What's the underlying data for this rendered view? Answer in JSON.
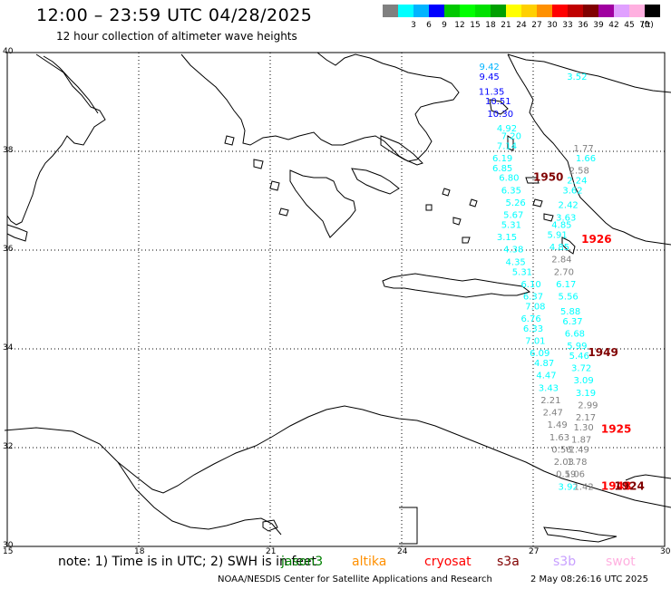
{
  "header": {
    "title": "12:00 – 23:59 UTC 04/28/2025",
    "subtitle": "12 hour collection of altimeter wave heights"
  },
  "legend": {
    "unit": "(ft)",
    "swatches": [
      {
        "color": "#808080",
        "label": ""
      },
      {
        "color": "#00ffff",
        "label": "3"
      },
      {
        "color": "#00b4ff",
        "label": "6"
      },
      {
        "color": "#0000ff",
        "label": "9"
      },
      {
        "color": "#00c800",
        "label": "12"
      },
      {
        "color": "#00ff00",
        "label": "15"
      },
      {
        "color": "#00e000",
        "label": "18"
      },
      {
        "color": "#00a000",
        "label": "21"
      },
      {
        "color": "#ffff00",
        "label": "24"
      },
      {
        "color": "#ffd000",
        "label": "27"
      },
      {
        "color": "#ff9000",
        "label": "30"
      },
      {
        "color": "#ff0000",
        "label": "33"
      },
      {
        "color": "#c00000",
        "label": "36"
      },
      {
        "color": "#800000",
        "label": "39"
      },
      {
        "color": "#a000a0",
        "label": "42"
      },
      {
        "color": "#e0a0ff",
        "label": "45"
      },
      {
        "color": "#ffb0e0",
        "label": "70"
      },
      {
        "color": "#000000",
        "label": ""
      }
    ]
  },
  "axes": {
    "lon_ticks": [
      "15",
      "18",
      "21",
      "24",
      "27",
      "30"
    ],
    "lat_ticks": [
      "30",
      "32",
      "34",
      "36",
      "38",
      "40"
    ],
    "lon_range": [
      15,
      30
    ],
    "lat_range": [
      30,
      40
    ],
    "grid": true
  },
  "observations": [
    {
      "lon": 26.0,
      "lat": 39.65,
      "text": "9.42",
      "color": "#00b4ff"
    },
    {
      "lon": 26.0,
      "lat": 39.45,
      "text": "9.45",
      "color": "#0000ff"
    },
    {
      "lon": 26.05,
      "lat": 39.15,
      "text": "11.35",
      "color": "#0000ff"
    },
    {
      "lon": 26.2,
      "lat": 38.95,
      "text": "10.51",
      "color": "#0000ff"
    },
    {
      "lon": 26.25,
      "lat": 38.7,
      "text": "10.30",
      "color": "#0000ff"
    },
    {
      "lon": 26.4,
      "lat": 38.4,
      "text": "4.92",
      "color": "#00ffff"
    },
    {
      "lon": 26.5,
      "lat": 38.25,
      "text": "7.20",
      "color": "#00ffff"
    },
    {
      "lon": 26.4,
      "lat": 38.05,
      "text": "7.14",
      "color": "#00ffff"
    },
    {
      "lon": 26.3,
      "lat": 37.8,
      "text": "6.19",
      "color": "#00ffff"
    },
    {
      "lon": 26.3,
      "lat": 37.6,
      "text": "6.85",
      "color": "#00ffff"
    },
    {
      "lon": 26.45,
      "lat": 37.4,
      "text": "6.80",
      "color": "#00ffff"
    },
    {
      "lon": 26.5,
      "lat": 37.15,
      "text": "6.35",
      "color": "#00ffff"
    },
    {
      "lon": 26.6,
      "lat": 36.9,
      "text": "5.26",
      "color": "#00ffff"
    },
    {
      "lon": 26.55,
      "lat": 36.65,
      "text": "5.67",
      "color": "#00ffff"
    },
    {
      "lon": 26.5,
      "lat": 36.45,
      "text": "5.31",
      "color": "#00ffff"
    },
    {
      "lon": 26.4,
      "lat": 36.2,
      "text": "3.15",
      "color": "#00ffff"
    },
    {
      "lon": 26.55,
      "lat": 35.95,
      "text": "4.38",
      "color": "#00ffff"
    },
    {
      "lon": 26.6,
      "lat": 35.7,
      "text": "4.35",
      "color": "#00ffff"
    },
    {
      "lon": 26.75,
      "lat": 35.5,
      "text": "5.31",
      "color": "#00ffff"
    },
    {
      "lon": 26.95,
      "lat": 35.25,
      "text": "6.10",
      "color": "#00ffff"
    },
    {
      "lon": 27.0,
      "lat": 35.0,
      "text": "6.37",
      "color": "#00ffff"
    },
    {
      "lon": 27.05,
      "lat": 34.8,
      "text": "7.08",
      "color": "#00ffff"
    },
    {
      "lon": 26.95,
      "lat": 34.55,
      "text": "6.76",
      "color": "#00ffff"
    },
    {
      "lon": 27.0,
      "lat": 34.35,
      "text": "6.33",
      "color": "#00ffff"
    },
    {
      "lon": 27.05,
      "lat": 34.1,
      "text": "7.01",
      "color": "#00ffff"
    },
    {
      "lon": 27.15,
      "lat": 33.85,
      "text": "6.09",
      "color": "#00ffff"
    },
    {
      "lon": 27.25,
      "lat": 33.65,
      "text": "4.87",
      "color": "#00ffff"
    },
    {
      "lon": 27.3,
      "lat": 33.4,
      "text": "4.47",
      "color": "#00ffff"
    },
    {
      "lon": 27.35,
      "lat": 33.15,
      "text": "3.43",
      "color": "#00ffff"
    },
    {
      "lon": 27.4,
      "lat": 32.9,
      "text": "2.21",
      "color": "#808080"
    },
    {
      "lon": 27.45,
      "lat": 32.65,
      "text": "2.47",
      "color": "#808080"
    },
    {
      "lon": 27.55,
      "lat": 32.4,
      "text": "1.49",
      "color": "#808080"
    },
    {
      "lon": 27.6,
      "lat": 32.15,
      "text": "1.63",
      "color": "#808080"
    },
    {
      "lon": 27.65,
      "lat": 31.9,
      "text": "0.56",
      "color": "#808080"
    },
    {
      "lon": 27.7,
      "lat": 31.65,
      "text": "2.03",
      "color": "#808080"
    },
    {
      "lon": 27.75,
      "lat": 31.4,
      "text": "0.59",
      "color": "#808080"
    },
    {
      "lon": 27.8,
      "lat": 31.15,
      "text": "3.92",
      "color": "#00ffff"
    },
    {
      "lon": 28.0,
      "lat": 39.45,
      "text": "3.52",
      "color": "#00ffff"
    },
    {
      "lon": 28.15,
      "lat": 38.0,
      "text": "1.77",
      "color": "#808080"
    },
    {
      "lon": 28.2,
      "lat": 37.8,
      "text": "1.66",
      "color": "#00ffff"
    },
    {
      "lon": 28.05,
      "lat": 37.55,
      "text": "2.58",
      "color": "#808080"
    },
    {
      "lon": 28.0,
      "lat": 37.35,
      "text": "2.24",
      "color": "#00ffff"
    },
    {
      "lon": 27.9,
      "lat": 37.15,
      "text": "3.62",
      "color": "#00ffff"
    },
    {
      "lon": 27.8,
      "lat": 36.85,
      "text": "2.42",
      "color": "#00ffff"
    },
    {
      "lon": 27.75,
      "lat": 36.6,
      "text": "3.63",
      "color": "#00ffff"
    },
    {
      "lon": 27.65,
      "lat": 36.45,
      "text": "4.85",
      "color": "#00ffff"
    },
    {
      "lon": 27.55,
      "lat": 36.25,
      "text": "5.91",
      "color": "#00ffff"
    },
    {
      "lon": 27.6,
      "lat": 36.0,
      "text": "4.85",
      "color": "#00ffff"
    },
    {
      "lon": 27.65,
      "lat": 35.75,
      "text": "2.84",
      "color": "#808080"
    },
    {
      "lon": 27.7,
      "lat": 35.5,
      "text": "2.70",
      "color": "#808080"
    },
    {
      "lon": 27.75,
      "lat": 35.25,
      "text": "6.17",
      "color": "#00ffff"
    },
    {
      "lon": 27.8,
      "lat": 35.0,
      "text": "5.56",
      "color": "#00ffff"
    },
    {
      "lon": 27.85,
      "lat": 34.7,
      "text": "5.88",
      "color": "#00ffff"
    },
    {
      "lon": 27.9,
      "lat": 34.5,
      "text": "6.37",
      "color": "#00ffff"
    },
    {
      "lon": 27.95,
      "lat": 34.25,
      "text": "6.68",
      "color": "#00ffff"
    },
    {
      "lon": 28.0,
      "lat": 34.0,
      "text": "5.99",
      "color": "#00ffff"
    },
    {
      "lon": 28.05,
      "lat": 33.8,
      "text": "5.46",
      "color": "#00ffff"
    },
    {
      "lon": 28.1,
      "lat": 33.55,
      "text": "3.72",
      "color": "#00ffff"
    },
    {
      "lon": 28.15,
      "lat": 33.3,
      "text": "3.09",
      "color": "#00ffff"
    },
    {
      "lon": 28.2,
      "lat": 33.05,
      "text": "3.19",
      "color": "#00ffff"
    },
    {
      "lon": 28.25,
      "lat": 32.8,
      "text": "2.99",
      "color": "#808080"
    },
    {
      "lon": 28.2,
      "lat": 32.55,
      "text": "2.17",
      "color": "#808080"
    },
    {
      "lon": 28.15,
      "lat": 32.35,
      "text": "1.30",
      "color": "#808080"
    },
    {
      "lon": 28.1,
      "lat": 32.1,
      "text": "1.87",
      "color": "#808080"
    },
    {
      "lon": 28.05,
      "lat": 31.9,
      "text": "1.49",
      "color": "#808080"
    },
    {
      "lon": 28.0,
      "lat": 31.65,
      "text": "1.78",
      "color": "#808080"
    },
    {
      "lon": 27.95,
      "lat": 31.4,
      "text": "1.06",
      "color": "#808080"
    },
    {
      "lon": 28.15,
      "lat": 31.15,
      "text": "1.42",
      "color": "#808080"
    }
  ],
  "time_labels": [
    {
      "lon": 27.0,
      "lat": 37.4,
      "text": "1950",
      "color": "#800000"
    },
    {
      "lon": 28.1,
      "lat": 36.15,
      "text": "1926",
      "color": "#ff0000"
    },
    {
      "lon": 28.25,
      "lat": 33.85,
      "text": "1949",
      "color": "#800000"
    },
    {
      "lon": 28.55,
      "lat": 32.3,
      "text": "1925",
      "color": "#ff0000"
    },
    {
      "lon": 28.55,
      "lat": 31.15,
      "text": "1948",
      "color": "#ff0000"
    },
    {
      "lon": 28.85,
      "lat": 31.15,
      "text": "1924",
      "color": "#800000"
    }
  ],
  "footer": {
    "note": "note: 1) Time is in UTC; 2) SWH is in feet",
    "satellites": [
      {
        "name": "jason3",
        "color": "#008000"
      },
      {
        "name": "altika",
        "color": "#ff9000"
      },
      {
        "name": "cryosat",
        "color": "#ff0000"
      },
      {
        "name": "s3a",
        "color": "#800000"
      },
      {
        "name": "s3b",
        "color": "#c8a0ff"
      },
      {
        "name": "swot",
        "color": "#ffb0e0"
      }
    ],
    "credit": "NOAA/NESDIS Center for Satellite Applications and Research",
    "timestamp": "2 May 08:26:16 UTC 2025"
  }
}
